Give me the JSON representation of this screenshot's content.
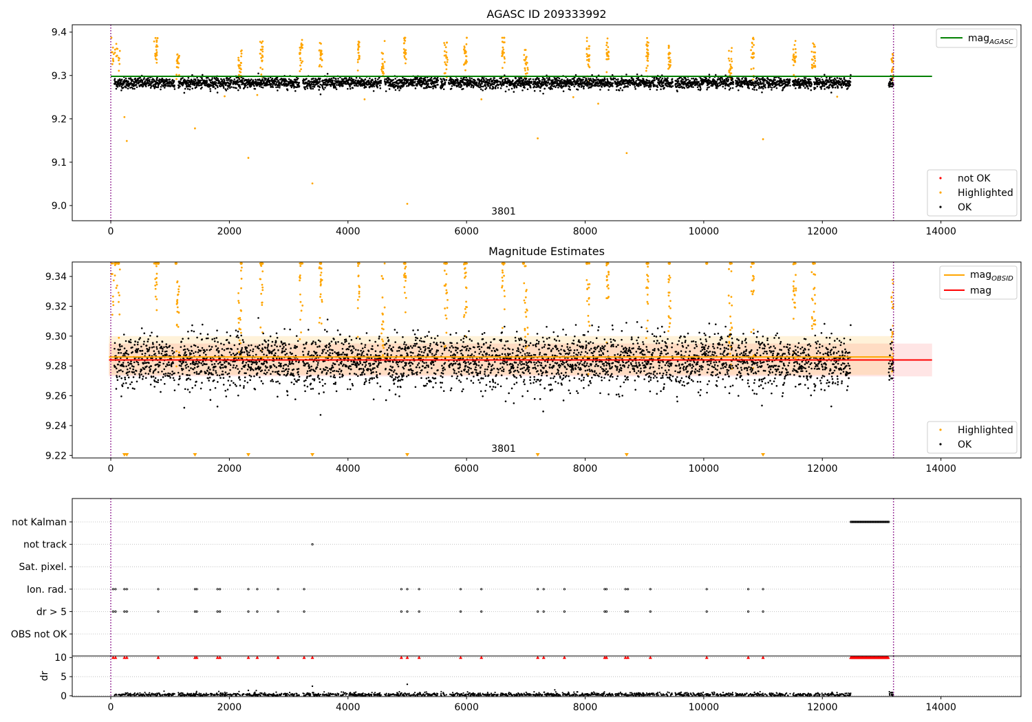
{
  "colors": {
    "ok": "#000000",
    "highlighted": "#ffa500",
    "not_ok": "#ff0000",
    "agasc_line": "#008000",
    "obsid_line": "#ffa500",
    "mag_line": "#ff0000",
    "vline": "#800080",
    "grid": "#b0b0b0"
  },
  "chart_data": [
    {
      "type": "scatter",
      "title": "AGASC ID 209333992",
      "xlim": [
        -650,
        15350
      ],
      "ylim": [
        8.965,
        9.417
      ],
      "xticks": [
        0,
        2000,
        4000,
        6000,
        8000,
        10000,
        12000,
        14000
      ],
      "xtick_labels": [
        "0",
        "2000",
        "4000",
        "6000",
        "8000",
        "10000",
        "12000",
        "14000"
      ],
      "yticks": [
        9.0,
        9.1,
        9.2,
        9.3,
        9.4
      ],
      "ytick_labels": [
        "9.0",
        "9.1",
        "9.2",
        "9.3",
        "9.4"
      ],
      "annotation": "3801",
      "vlines_x": [
        0,
        13200
      ],
      "hline": {
        "name": "mag_AGASC",
        "label_main": "mag",
        "label_sub": "AGASC",
        "y": 9.298,
        "x_range": [
          0,
          13850
        ]
      },
      "legend_upper": {
        "position": "upper right",
        "entries": [
          {
            "label_main": "mag",
            "label_sub": "AGASC",
            "color": "#008000",
            "kind": "line"
          }
        ]
      },
      "legend_lower": {
        "position": "lower right",
        "entries": [
          {
            "label": "not OK",
            "color": "#ff0000",
            "kind": "dot"
          },
          {
            "label": "Highlighted",
            "color": "#ffa500",
            "kind": "dot"
          },
          {
            "label": "OK",
            "color": "#000000",
            "kind": "dot"
          }
        ]
      },
      "segments": [
        [
          60,
          1080
        ],
        [
          1140,
          2040
        ],
        [
          2060,
          3180
        ],
        [
          3240,
          3540
        ],
        [
          3560,
          4560
        ],
        [
          4620,
          5520
        ],
        [
          5560,
          5640
        ],
        [
          5660,
          5660
        ],
        [
          5700,
          6540
        ],
        [
          6560,
          7100
        ],
        [
          7120,
          7960
        ],
        [
          7960,
          8480
        ],
        [
          8500,
          9180
        ],
        [
          9200,
          9480
        ],
        [
          9520,
          10500
        ],
        [
          10540,
          11040
        ],
        [
          11060,
          11460
        ],
        [
          11500,
          11620
        ],
        [
          11620,
          11820
        ],
        [
          11860,
          12480
        ],
        [
          13120,
          13200
        ]
      ],
      "ok_center": 9.283,
      "ok_spread": 0.012,
      "highlight_clusters": [
        [
          80,
          150,
          9.345
        ],
        [
          760,
          60,
          9.355
        ],
        [
          1130,
          50,
          9.33
        ],
        [
          2180,
          60,
          9.33
        ],
        [
          2540,
          50,
          9.35
        ],
        [
          3210,
          50,
          9.35
        ],
        [
          3540,
          50,
          9.34
        ],
        [
          4180,
          30,
          9.36
        ],
        [
          4590,
          60,
          9.325
        ],
        [
          4960,
          40,
          9.36
        ],
        [
          5650,
          60,
          9.345
        ],
        [
          5980,
          50,
          9.35
        ],
        [
          6620,
          50,
          9.35
        ],
        [
          7000,
          70,
          9.325
        ],
        [
          8050,
          50,
          9.34
        ],
        [
          8380,
          40,
          9.35
        ],
        [
          9050,
          40,
          9.35
        ],
        [
          9420,
          40,
          9.34
        ],
        [
          10450,
          60,
          9.33
        ],
        [
          10820,
          50,
          9.35
        ],
        [
          11530,
          60,
          9.34
        ],
        [
          11850,
          60,
          9.34
        ],
        [
          13180,
          30,
          9.325
        ]
      ],
      "outliers": [
        [
          230,
          9.204
        ],
        [
          270,
          9.149
        ],
        [
          1420,
          9.178
        ],
        [
          2320,
          9.11
        ],
        [
          3400,
          9.051
        ],
        [
          5000,
          9.004
        ],
        [
          7200,
          9.155
        ],
        [
          8700,
          9.121
        ],
        [
          11000,
          9.153
        ],
        [
          1920,
          9.252
        ],
        [
          2470,
          9.255
        ],
        [
          4280,
          9.245
        ],
        [
          6250,
          9.245
        ],
        [
          7800,
          9.25
        ],
        [
          8220,
          9.235
        ],
        [
          12250,
          9.251
        ]
      ]
    },
    {
      "type": "scatter",
      "title": "Magnitude Estimates",
      "xlim": [
        -650,
        15350
      ],
      "ylim": [
        9.2183,
        9.3497
      ],
      "xticks": [
        0,
        2000,
        4000,
        6000,
        8000,
        10000,
        12000,
        14000
      ],
      "xtick_labels": [
        "0",
        "2000",
        "4000",
        "6000",
        "8000",
        "10000",
        "12000",
        "14000"
      ],
      "yticks": [
        9.22,
        9.24,
        9.26,
        9.28,
        9.3,
        9.32,
        9.34
      ],
      "ytick_labels": [
        "9.22",
        "9.24",
        "9.26",
        "9.28",
        "9.30",
        "9.32",
        "9.34"
      ],
      "annotation": "3801",
      "vlines_x": [
        0,
        13200
      ],
      "mag_line": {
        "y": 9.284,
        "band": [
          9.273,
          9.295
        ],
        "x_range": [
          -30,
          13850
        ]
      },
      "obsid_line": {
        "y": 9.286,
        "band": [
          9.274,
          9.3
        ],
        "x_range": [
          -30,
          13200
        ]
      },
      "legend_upper": {
        "position": "upper right",
        "entries": [
          {
            "label_main": "mag",
            "label_sub": "OBSID",
            "color": "#ffa500",
            "kind": "line"
          },
          {
            "label": "mag",
            "color": "#ff0000",
            "kind": "line"
          }
        ]
      },
      "legend_lower": {
        "position": "lower right",
        "entries": [
          {
            "label": "Highlighted",
            "color": "#ffa500",
            "kind": "dot"
          },
          {
            "label": "OK",
            "color": "#000000",
            "kind": "dot"
          }
        ]
      },
      "clipped_low_x": [
        230,
        270,
        1420,
        2320,
        3400,
        5000,
        7200,
        8700,
        11000
      ],
      "clipped_high_x": [
        80,
        130,
        760,
        800,
        1100,
        2200,
        2540,
        3210,
        3540,
        4180,
        4960,
        5650,
        5980,
        6620,
        6960,
        8030,
        8380,
        9050,
        9420,
        10050,
        10450,
        10820,
        11530,
        11850
      ]
    },
    {
      "type": "scatter",
      "title": "",
      "xlim": [
        -650,
        15350
      ],
      "categories": [
        "not Kalman",
        "not track",
        "Sat. pixel.",
        "Ion. rad.",
        "dr > 5",
        "OBS not OK"
      ],
      "flag_points": {
        "not Kalman": {
          "range": [
            12480,
            13120
          ],
          "step": 16
        },
        "not track": [
          3400
        ],
        "Sat. pixel.": [],
        "Ion. rad.": [
          40,
          80,
          230,
          270,
          800,
          1420,
          1450,
          1800,
          1840,
          2320,
          2470,
          2820,
          3260,
          4900,
          5000,
          5200,
          5900,
          6250,
          7200,
          7300,
          7650,
          8330,
          8360,
          8680,
          8720,
          9100,
          10050,
          10750,
          11000
        ],
        "dr > 5": [
          40,
          80,
          230,
          270,
          800,
          1420,
          1450,
          1800,
          1840,
          2320,
          2470,
          2820,
          3260,
          4900,
          5000,
          5200,
          5900,
          6250,
          7200,
          7300,
          7650,
          8330,
          8360,
          8680,
          8720,
          9100,
          10050,
          10750,
          11000
        ],
        "OBS not OK": []
      }
    },
    {
      "type": "scatter",
      "title": "",
      "ylabel": "dr",
      "xlim": [
        -650,
        15350
      ],
      "ylim": [
        -0.2,
        10.4
      ],
      "xticks": [
        0,
        2000,
        4000,
        6000,
        8000,
        10000,
        12000,
        14000
      ],
      "xtick_labels": [
        "0",
        "2000",
        "4000",
        "6000",
        "8000",
        "10000",
        "12000",
        "14000"
      ],
      "yticks": [
        0,
        5,
        10
      ],
      "ytick_labels": [
        "0",
        "5",
        "10"
      ],
      "clip_value": 10,
      "dr_typical": 0.3,
      "dr_outliers": [
        [
          3400,
          2.5
        ],
        [
          5000,
          3.0
        ],
        [
          2320,
          1.4
        ]
      ],
      "clipped_x": [
        40,
        80,
        230,
        270,
        800,
        1420,
        1450,
        1800,
        1840,
        2320,
        2470,
        2820,
        3260,
        3400,
        4900,
        5000,
        5200,
        5900,
        6250,
        7200,
        7300,
        7650,
        8330,
        8360,
        8680,
        8720,
        9100,
        10050,
        10750,
        11000
      ],
      "clipped_dense_range": [
        12480,
        13120
      ]
    }
  ]
}
